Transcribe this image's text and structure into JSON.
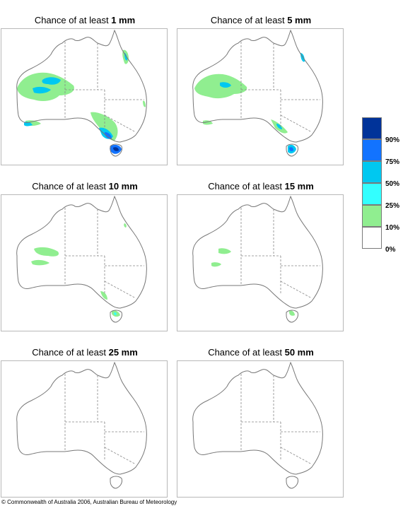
{
  "colors": {
    "c10": "#90ee90",
    "c25": "#33ffff",
    "c50": "#00c8f0",
    "c75": "#1273ff",
    "c90": "#003399",
    "coast": "#777777",
    "border": "#b8b8b8"
  },
  "panels": [
    {
      "prefix": "Chance of at least ",
      "amount": "1 mm"
    },
    {
      "prefix": "Chance of at least ",
      "amount": "5 mm"
    },
    {
      "prefix": "Chance of at least ",
      "amount": "10 mm"
    },
    {
      "prefix": "Chance of at least ",
      "amount": "15 mm"
    },
    {
      "prefix": "Chance of at least ",
      "amount": "25 mm"
    },
    {
      "prefix": "Chance of at least ",
      "amount": "50 mm"
    }
  ],
  "legend": {
    "labels": [
      "90%",
      "75%",
      "50%",
      "25%",
      "10%",
      "0%"
    ]
  },
  "copyright": "© Commonwealth of Australia 2006, Australian Bureau of Meteorology"
}
